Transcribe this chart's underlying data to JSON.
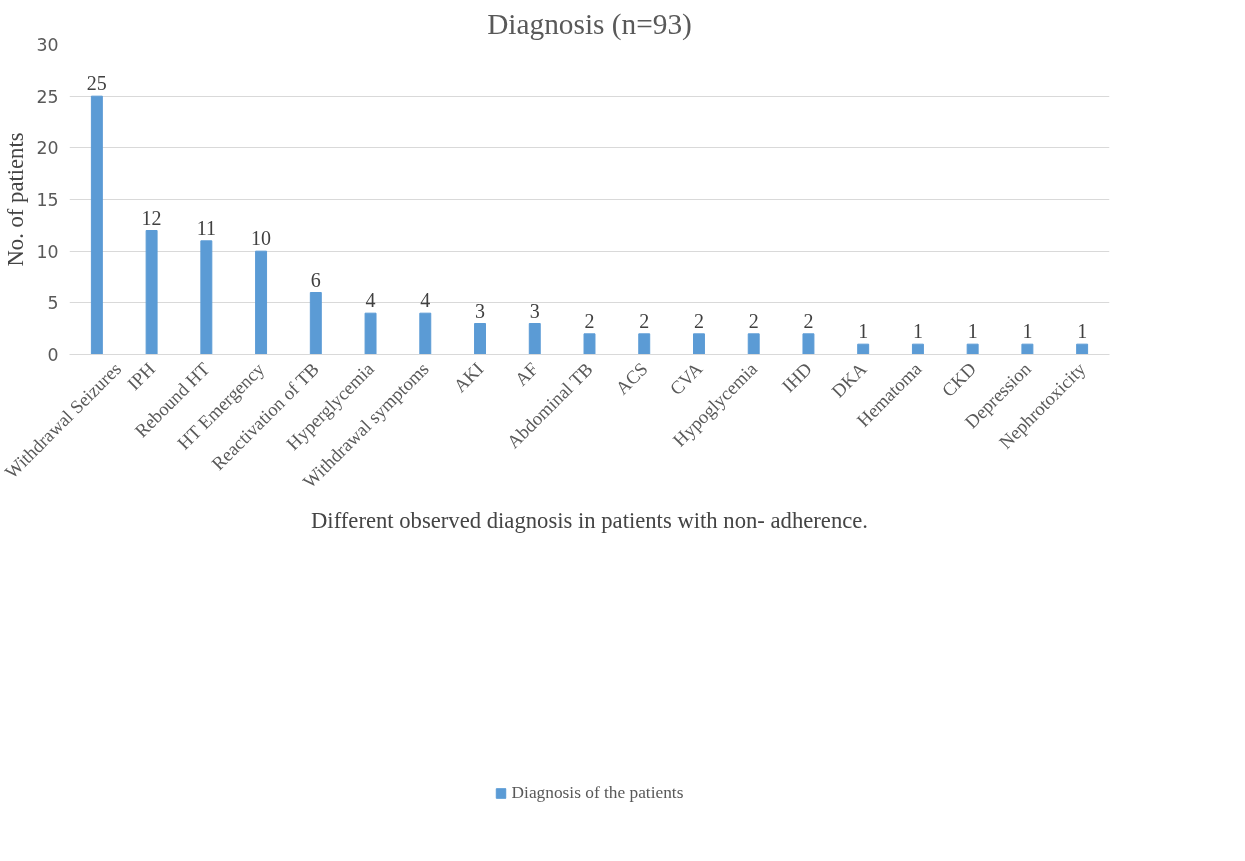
{
  "chart_data": {
    "type": "bar",
    "title": "Diagnosis (n=93)",
    "xlabel": "Different observed diagnosis in patients with non- adherence.",
    "ylabel": "No. of patients",
    "categories": [
      "Withdrawal Seizures",
      "IPH",
      "Rebound HT",
      "HT Emergency",
      "Reactivation of TB",
      "Hyperglycemia",
      "Withdrawal symptoms",
      "AKI",
      "AF",
      "Abdominal TB",
      "ACS",
      "CVA",
      "Hypoglycemia",
      "IHD",
      "DKA",
      "Hematoma",
      "CKD",
      "Depression",
      "Nephrotoxicity"
    ],
    "series": [
      {
        "name": "Diagnosis of the patients",
        "color": "#5b9bd5",
        "values": [
          25,
          12,
          11,
          10,
          6,
          4,
          4,
          3,
          3,
          2,
          2,
          2,
          2,
          2,
          1,
          1,
          1,
          1,
          1
        ]
      }
    ],
    "ylim": [
      0,
      30
    ],
    "yticks": [
      0,
      5,
      10,
      15,
      20,
      25,
      30
    ],
    "grid": "y",
    "legend": "bottom",
    "data_labels": true
  }
}
